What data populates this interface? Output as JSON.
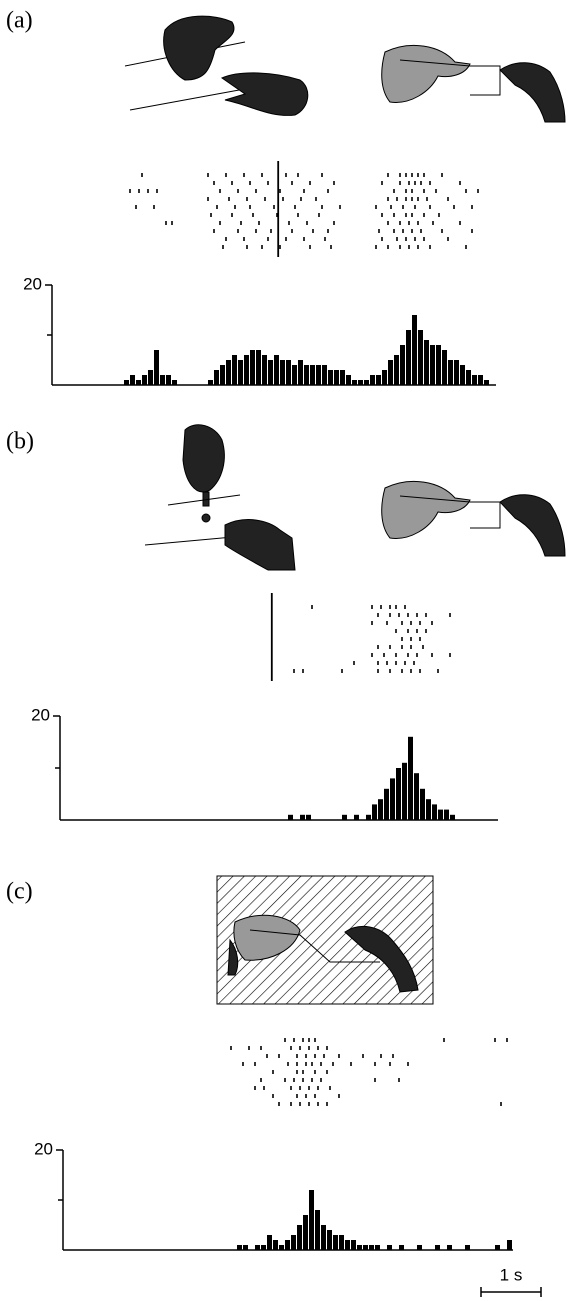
{
  "chart_data": [
    {
      "type": "histogram",
      "label": "(a)",
      "xlim": [
        0,
        7.4
      ],
      "ylim": [
        0,
        20
      ],
      "yticks": [
        20
      ],
      "minor_yticks": [
        10
      ],
      "bins": [
        1.2,
        1.3,
        1.4,
        1.5,
        1.6,
        1.7,
        1.8,
        1.9,
        2.0,
        2.1,
        2.2,
        2.3,
        2.4,
        2.5,
        2.6,
        2.7,
        2.8,
        2.9,
        3.0,
        3.1,
        3.2,
        3.3,
        3.4,
        3.5,
        3.6,
        3.7,
        3.8,
        3.9,
        4.0,
        4.1,
        4.2,
        4.3,
        4.4,
        4.5,
        4.6,
        4.7,
        4.8,
        4.9,
        5.0,
        5.1,
        5.2,
        5.3,
        5.4,
        5.5,
        5.6,
        5.7,
        5.8,
        5.9,
        6.0,
        6.1,
        6.2,
        6.3,
        6.4,
        6.5,
        6.6,
        6.7,
        6.8,
        6.9,
        7.0,
        7.1,
        7.2,
        7.3
      ],
      "values": [
        1,
        2,
        1,
        2,
        3,
        7,
        2,
        2,
        1,
        0,
        0,
        0,
        0,
        0,
        1,
        3,
        4,
        5,
        6,
        5,
        6,
        7,
        7,
        6,
        5,
        6,
        5,
        5,
        4,
        5,
        4,
        4,
        4,
        4,
        3,
        3,
        3,
        2,
        1,
        1,
        1,
        2,
        2,
        3,
        5,
        6,
        8,
        11,
        14,
        11,
        9,
        8,
        8,
        7,
        5,
        5,
        4,
        3,
        2,
        2,
        1
      ],
      "event_line": 3.77,
      "raster": [
        [
          1.5,
          2.6,
          2.9,
          3.2,
          3.5,
          3.9,
          4.1,
          4.5,
          5.6,
          5.8,
          5.9,
          6.0,
          6.1,
          6.2,
          6.5
        ],
        [
          2.7,
          3.0,
          3.3,
          3.6,
          4.0,
          4.3,
          4.7,
          5.5,
          5.8,
          5.95,
          6.05,
          6.15,
          6.3,
          6.8
        ],
        [
          1.3,
          1.45,
          1.6,
          1.75,
          2.8,
          3.1,
          3.4,
          3.8,
          4.2,
          4.6,
          5.7,
          5.9,
          6.0,
          6.2,
          6.4,
          6.9,
          7.1
        ],
        [
          2.6,
          2.95,
          3.25,
          3.55,
          3.85,
          4.15,
          4.4,
          5.6,
          5.75,
          5.9,
          6.0,
          6.1,
          6.25,
          6.6
        ],
        [
          1.4,
          1.7,
          2.75,
          3.05,
          3.3,
          3.7,
          4.05,
          4.5,
          4.8,
          5.4,
          5.65,
          5.85,
          6.05,
          6.3,
          6.7,
          7.0
        ],
        [
          2.65,
          3.0,
          3.35,
          3.75,
          4.1,
          4.45,
          5.5,
          5.7,
          5.9,
          6.0,
          6.2,
          6.45
        ],
        [
          1.9,
          2.0,
          2.8,
          3.15,
          3.45,
          3.95,
          4.25,
          4.7,
          5.6,
          5.8,
          5.95,
          6.1,
          6.35,
          6.8
        ],
        [
          2.7,
          3.1,
          3.4,
          3.65,
          4.0,
          4.35,
          4.6,
          5.45,
          5.7,
          5.85,
          6.0,
          6.15,
          6.5,
          7.0
        ],
        [
          2.9,
          3.2,
          3.6,
          3.9,
          4.2,
          4.55,
          5.5,
          5.75,
          5.9,
          6.05,
          6.2,
          6.6
        ],
        [
          2.85,
          3.25,
          3.5,
          3.8,
          4.3,
          4.65,
          5.4,
          5.6,
          5.8,
          5.95,
          6.1,
          6.3,
          6.9
        ]
      ]
    },
    {
      "type": "histogram",
      "label": "(b)",
      "xlim": [
        0,
        7.3
      ],
      "ylim": [
        0,
        20
      ],
      "yticks": [
        20
      ],
      "minor_yticks": [
        10
      ],
      "bins": [
        3.8,
        3.9,
        4.0,
        4.1,
        4.2,
        4.3,
        4.4,
        4.5,
        4.6,
        4.7,
        4.8,
        4.9,
        5.0,
        5.1,
        5.2,
        5.3,
        5.4,
        5.5,
        5.6,
        5.7,
        5.8,
        5.9,
        6.0,
        6.1,
        6.2,
        6.3,
        6.4,
        6.5,
        6.6
      ],
      "values": [
        1,
        0,
        1,
        1,
        0,
        0,
        0,
        0,
        0,
        1,
        0,
        1,
        0,
        1,
        3,
        4,
        6,
        8,
        10,
        11,
        16,
        9,
        6,
        4,
        3,
        2,
        2,
        1
      ],
      "event_line": 3.53,
      "raster": [
        [
          4.2,
          5.2,
          5.35,
          5.5,
          5.6,
          5.75
        ],
        [
          5.3,
          5.5,
          5.65,
          5.8,
          5.95,
          6.1,
          6.5
        ],
        [
          5.2,
          5.45,
          5.7,
          5.85,
          6.0,
          6.2
        ],
        [
          5.6,
          5.8,
          5.95,
          6.1
        ],
        [
          5.7,
          5.85,
          6.0
        ],
        [
          5.3,
          5.5,
          5.7,
          5.85,
          6.05
        ],
        [
          5.2,
          5.4,
          5.6,
          5.8,
          5.95,
          6.2,
          6.5
        ],
        [
          4.9,
          5.3,
          5.45,
          5.6,
          5.75,
          5.9
        ],
        [
          3.9,
          4.05,
          4.7,
          5.3,
          5.5,
          5.7,
          5.85,
          6.0,
          6.3
        ]
      ]
    },
    {
      "type": "histogram",
      "label": "(c)",
      "xlim": [
        0,
        7.5
      ],
      "ylim": [
        0,
        20
      ],
      "yticks": [
        20
      ],
      "minor_yticks": [
        10
      ],
      "bins": [
        2.9,
        3.0,
        3.1,
        3.2,
        3.3,
        3.4,
        3.5,
        3.6,
        3.7,
        3.8,
        3.9,
        4.0,
        4.1,
        4.2,
        4.3,
        4.4,
        4.5,
        4.6,
        4.7,
        4.8,
        4.9,
        5.0,
        5.1,
        5.2,
        5.3,
        5.4,
        5.5,
        5.6,
        5.7,
        5.8,
        5.9,
        6.0,
        6.1,
        6.2,
        6.3,
        6.4,
        6.5,
        6.6,
        6.7,
        6.8,
        6.9,
        7.0,
        7.1,
        7.2,
        7.3,
        7.4,
        7.5
      ],
      "values": [
        1,
        1,
        0,
        1,
        1,
        3,
        2,
        1,
        2,
        3,
        5,
        7,
        12,
        8,
        5,
        4,
        3,
        3,
        2,
        2,
        1,
        1,
        1,
        1,
        0,
        1,
        0,
        1,
        0,
        0,
        1,
        0,
        0,
        1,
        0,
        1,
        0,
        0,
        1,
        0,
        0,
        0,
        0,
        1,
        0,
        2
      ],
      "raster": [
        [
          3.7,
          3.85,
          4.0,
          4.1,
          4.2,
          6.35,
          7.2,
          7.4
        ],
        [
          2.8,
          3.1,
          3.3,
          3.8,
          3.95,
          4.1,
          4.25,
          4.4
        ],
        [
          3.4,
          3.6,
          3.9,
          4.05,
          4.2,
          4.35,
          4.6,
          5.0,
          5.3,
          5.5
        ],
        [
          3.0,
          3.2,
          3.75,
          3.9,
          4.05,
          4.15,
          4.3,
          4.5,
          4.8,
          5.2,
          5.45,
          5.75
        ],
        [
          3.5,
          3.9,
          4.0,
          4.2,
          4.4
        ],
        [
          3.3,
          3.7,
          3.85,
          4.0,
          4.15,
          4.3,
          5.2,
          5.6
        ],
        [
          3.2,
          3.35,
          3.8,
          3.95,
          4.1,
          4.25,
          4.45
        ],
        [
          3.5,
          3.9,
          4.05,
          4.2,
          4.6
        ],
        [
          3.6,
          3.8,
          3.95,
          4.1,
          4.25,
          4.4,
          7.3
        ]
      ]
    }
  ],
  "scale_bar": {
    "value": 1,
    "label": "1 s"
  }
}
